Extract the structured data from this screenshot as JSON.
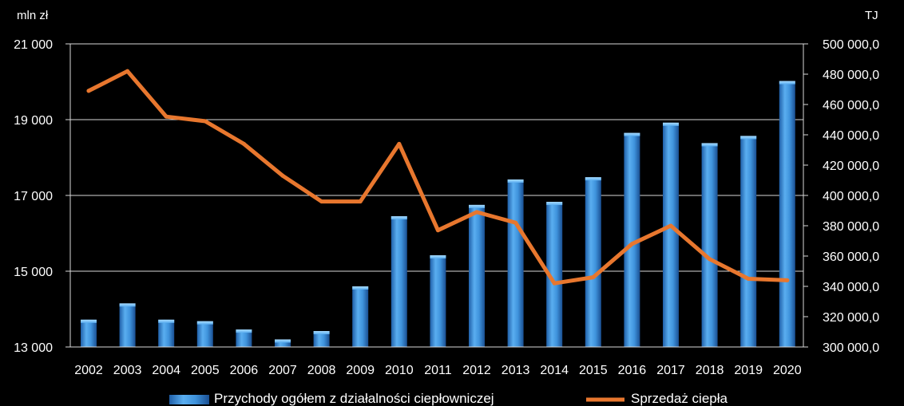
{
  "chart_data": {
    "type": "bar",
    "categories": [
      "2002",
      "2003",
      "2004",
      "2005",
      "2006",
      "2007",
      "2008",
      "2009",
      "2010",
      "2011",
      "2012",
      "2013",
      "2014",
      "2015",
      "2016",
      "2017",
      "2018",
      "2019",
      "2020"
    ],
    "series": [
      {
        "name": "Przychody ogółem z działalności ciepłowniczej",
        "type": "bar",
        "axis": "left",
        "color": "#3a8fd8",
        "values": [
          13720,
          14150,
          13720,
          13680,
          13460,
          13200,
          13420,
          14600,
          16450,
          15420,
          16750,
          17420,
          16830,
          17480,
          18650,
          18920,
          18380,
          18570,
          20020
        ]
      },
      {
        "name": "Sprzedaż ciepła",
        "type": "line",
        "axis": "right",
        "color": "#e8772e",
        "values": [
          469000,
          482000,
          452000,
          449000,
          434000,
          413000,
          396000,
          396000,
          434000,
          377000,
          389000,
          382000,
          342000,
          346000,
          368000,
          380000,
          358000,
          345000,
          344000
        ]
      }
    ],
    "y_left": {
      "unit": "mln zł",
      "ylim": [
        13000,
        21000
      ],
      "ticks": [
        "13 000",
        "15 000",
        "17 000",
        "19 000",
        "21 000"
      ],
      "tick_values": [
        13000,
        15000,
        17000,
        19000,
        21000
      ]
    },
    "y_right": {
      "unit": "TJ",
      "ylim": [
        300000,
        500000
      ],
      "ticks": [
        "300 000,0",
        "320 000,0",
        "340 000,0",
        "360 000,0",
        "380 000,0",
        "400 000,0",
        "420 000,0",
        "440 000,0",
        "460 000,0",
        "480 000,0",
        "500 000,0"
      ],
      "tick_values": [
        300000,
        320000,
        340000,
        360000,
        380000,
        400000,
        420000,
        440000,
        460000,
        480000,
        500000
      ]
    },
    "grid": true,
    "legend": "bottom",
    "background": "#000000"
  }
}
